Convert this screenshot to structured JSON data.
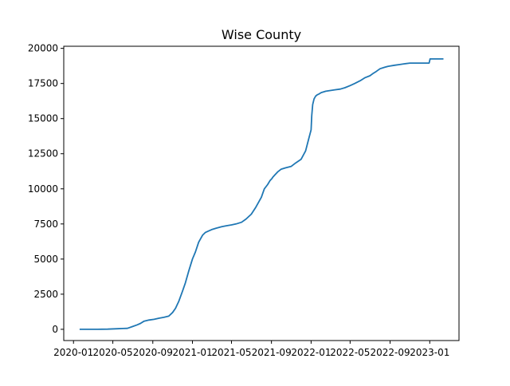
{
  "chart_data": {
    "type": "line",
    "title": "Wise County",
    "xlabel": "",
    "ylabel": "",
    "x_axis_type": "date",
    "xlim": [
      "2019-12-02",
      "2023-04-01"
    ],
    "ylim": [
      -800,
      20150
    ],
    "x_ticks": [
      "2020-01-01",
      "2020-05-01",
      "2020-09-01",
      "2021-01-01",
      "2021-05-01",
      "2021-09-01",
      "2022-01-01",
      "2022-05-01",
      "2022-09-01",
      "2023-01-01"
    ],
    "x_tick_labels": [
      "2020-01",
      "2020-05",
      "2020-09",
      "2021-01",
      "2021-05",
      "2021-09",
      "2022-01",
      "2022-05",
      "2022-09",
      "2023-01"
    ],
    "y_ticks": [
      0,
      2500,
      5000,
      7500,
      10000,
      12500,
      15000,
      17500,
      20000
    ],
    "y_tick_labels": [
      "0",
      "2500",
      "5000",
      "7500",
      "10000",
      "12500",
      "15000",
      "17500",
      "20000"
    ],
    "grid": false,
    "legend": "none",
    "series": [
      {
        "color": "#1f77b4",
        "x": [
          "2020-01-22",
          "2020-03-15",
          "2020-04-15",
          "2020-05-15",
          "2020-06-01",
          "2020-06-15",
          "2020-07-01",
          "2020-07-15",
          "2020-07-25",
          "2020-08-05",
          "2020-08-20",
          "2020-09-05",
          "2020-09-20",
          "2020-10-05",
          "2020-10-20",
          "2020-11-01",
          "2020-11-10",
          "2020-11-20",
          "2020-12-01",
          "2020-12-10",
          "2020-12-20",
          "2021-01-01",
          "2021-01-10",
          "2021-01-20",
          "2021-02-01",
          "2021-02-10",
          "2021-02-20",
          "2021-03-01",
          "2021-03-15",
          "2021-04-01",
          "2021-04-15",
          "2021-05-01",
          "2021-05-15",
          "2021-06-01",
          "2021-06-15",
          "2021-07-01",
          "2021-07-15",
          "2021-08-01",
          "2021-08-10",
          "2021-08-20",
          "2021-08-28",
          "2021-09-03",
          "2021-09-04",
          "2021-09-10",
          "2021-09-20",
          "2021-10-01",
          "2021-10-15",
          "2021-11-01",
          "2021-11-15",
          "2021-12-01",
          "2021-12-15",
          "2021-12-25",
          "2022-01-01",
          "2022-01-03",
          "2022-01-06",
          "2022-01-10",
          "2022-01-15",
          "2022-01-20",
          "2022-01-25",
          "2022-02-01",
          "2022-02-15",
          "2022-03-01",
          "2022-03-15",
          "2022-04-01",
          "2022-04-15",
          "2022-05-01",
          "2022-05-15",
          "2022-06-01",
          "2022-06-15",
          "2022-07-01",
          "2022-07-10",
          "2022-07-20",
          "2022-08-01",
          "2022-08-15",
          "2022-08-25",
          "2022-09-01",
          "2022-09-15",
          "2022-10-01",
          "2022-10-15",
          "2022-11-01",
          "2022-11-15",
          "2022-12-01",
          "2022-12-15",
          "2022-12-30",
          "2023-01-02",
          "2023-01-15",
          "2023-02-01",
          "2023-02-10"
        ],
        "y": [
          0,
          0,
          10,
          40,
          60,
          70,
          200,
          320,
          420,
          580,
          660,
          710,
          790,
          850,
          940,
          1200,
          1500,
          2000,
          2700,
          3300,
          4100,
          5000,
          5500,
          6200,
          6700,
          6900,
          7000,
          7100,
          7200,
          7300,
          7370,
          7430,
          7500,
          7620,
          7850,
          8200,
          8700,
          9400,
          10000,
          10300,
          10600,
          10750,
          10800,
          10950,
          11200,
          11400,
          11500,
          11600,
          11850,
          12100,
          12700,
          13600,
          14200,
          15200,
          16000,
          16400,
          16600,
          16700,
          16750,
          16850,
          16950,
          17000,
          17050,
          17100,
          17200,
          17350,
          17500,
          17700,
          17900,
          18050,
          18200,
          18350,
          18550,
          18650,
          18720,
          18750,
          18800,
          18850,
          18900,
          18950,
          18950,
          18950,
          18950,
          18950,
          19250,
          19250,
          19250,
          19250
        ]
      }
    ]
  }
}
